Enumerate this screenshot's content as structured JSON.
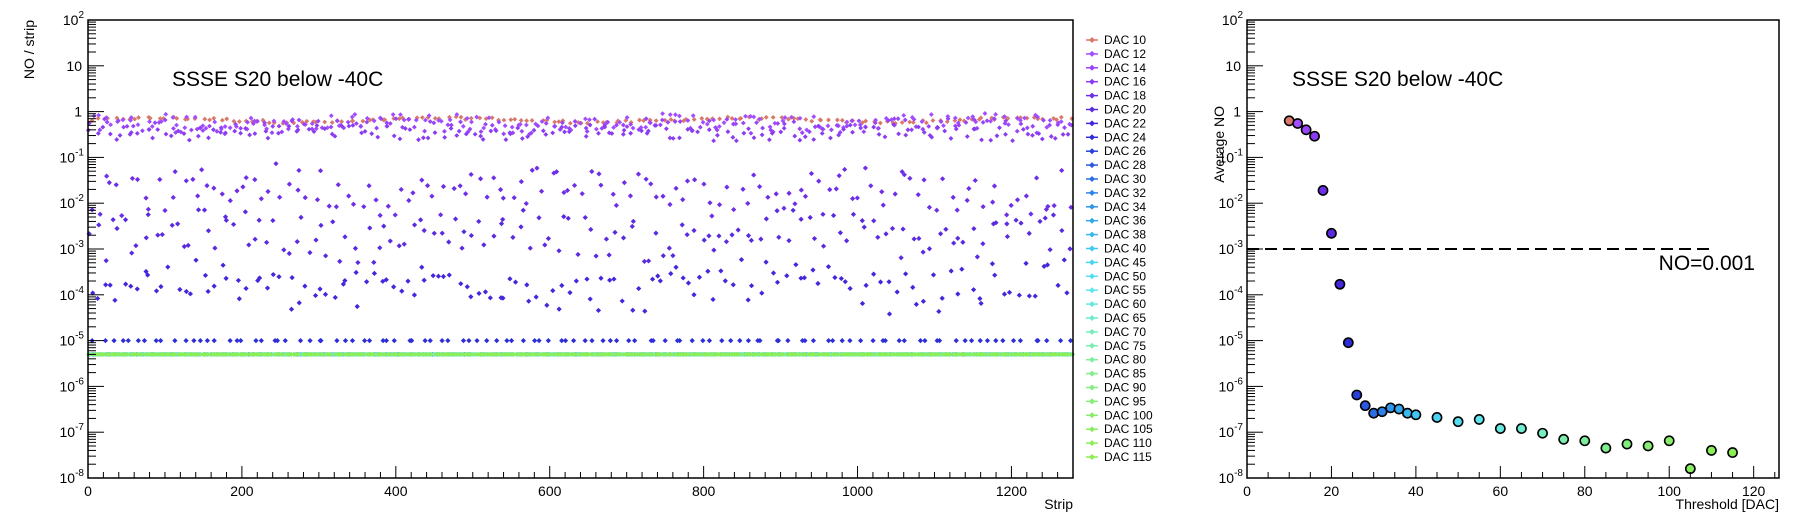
{
  "chart_data": [
    {
      "type": "scatter",
      "annotation": "SSSE S20 below -40C",
      "xlabel": "Strip",
      "ylabel": "NO / strip",
      "xlim": [
        0,
        1280
      ],
      "ylim": [
        1e-08,
        100
      ],
      "y_scale": "log",
      "x_ticks": [
        0,
        200,
        400,
        600,
        800,
        1000,
        1200
      ],
      "y_ticks": [
        "10^-8",
        "10^-7",
        "10^-6",
        "10^-5",
        "10^-4",
        "10^-3",
        "10^-2",
        "10^-1",
        "1",
        "10",
        "10^2"
      ],
      "legend_position": "right",
      "series": [
        {
          "name": "DAC 10",
          "color": "#d9796a",
          "level": 0.65
        },
        {
          "name": "DAC 12",
          "color": "#a24dff",
          "level": 0.6
        },
        {
          "name": "DAC 14",
          "color": "#9a44f8",
          "level": 0.5
        },
        {
          "name": "DAC 16",
          "color": "#8c3cf0",
          "level": 0.35
        },
        {
          "name": "DAC 18",
          "color": "#6e2ee8",
          "level": 0.02
        },
        {
          "name": "DAC 20",
          "color": "#5a2ae0",
          "level": 0.002
        },
        {
          "name": "DAC 22",
          "color": "#4426dc",
          "level": 0.00015
        },
        {
          "name": "DAC 24",
          "color": "#2e2ed8",
          "level": 1e-05
        },
        {
          "name": "DAC 26",
          "color": "#2a40dc",
          "level": 5e-06
        },
        {
          "name": "DAC 28",
          "color": "#2a58e0",
          "level": 5e-06
        },
        {
          "name": "DAC 30",
          "color": "#2a6ee4",
          "level": 5e-06
        },
        {
          "name": "DAC 32",
          "color": "#2c82e8",
          "level": 5e-06
        },
        {
          "name": "DAC 34",
          "color": "#3096ec",
          "level": 5e-06
        },
        {
          "name": "DAC 36",
          "color": "#34a8ee",
          "level": 5e-06
        },
        {
          "name": "DAC 38",
          "color": "#38b8f0",
          "level": 5e-06
        },
        {
          "name": "DAC 40",
          "color": "#40c6f2",
          "level": 5e-06
        },
        {
          "name": "DAC 45",
          "color": "#4ad2f2",
          "level": 5e-06
        },
        {
          "name": "DAC 50",
          "color": "#54dcf0",
          "level": 5e-06
        },
        {
          "name": "DAC 55",
          "color": "#5ee4ec",
          "level": 5e-06
        },
        {
          "name": "DAC 60",
          "color": "#66e8e0",
          "level": 5e-06
        },
        {
          "name": "DAC 65",
          "color": "#6eecd0",
          "level": 5e-06
        },
        {
          "name": "DAC 70",
          "color": "#76eebe",
          "level": 5e-06
        },
        {
          "name": "DAC 75",
          "color": "#7aeeac",
          "level": 5e-06
        },
        {
          "name": "DAC 80",
          "color": "#7eee9c",
          "level": 5e-06
        },
        {
          "name": "DAC 85",
          "color": "#80ee8c",
          "level": 5e-06
        },
        {
          "name": "DAC 90",
          "color": "#82ee7e",
          "level": 5e-06
        },
        {
          "name": "DAC 95",
          "color": "#84ee72",
          "level": 5e-06
        },
        {
          "name": "DAC 100",
          "color": "#86ee68",
          "level": 5e-06
        },
        {
          "name": "DAC 105",
          "color": "#88ee60",
          "level": 5e-06
        },
        {
          "name": "DAC 110",
          "color": "#8aee58",
          "level": 5e-06
        },
        {
          "name": "DAC 115",
          "color": "#8cee52",
          "level": 5e-06
        }
      ]
    },
    {
      "type": "scatter",
      "annotation": "SSSE S20 below -40C",
      "xlabel": "Threshold [DAC]",
      "ylabel": "Average NO",
      "xlim": [
        0,
        126
      ],
      "ylim": [
        1e-08,
        100
      ],
      "y_scale": "log",
      "x_ticks": [
        0,
        20,
        40,
        60,
        80,
        100,
        120
      ],
      "y_ticks": [
        "10^-8",
        "10^-7",
        "10^-6",
        "10^-5",
        "10^-4",
        "10^-3",
        "10^-2",
        "10^-1",
        "1",
        "10",
        "10^2"
      ],
      "reference_line": {
        "y": 0.001,
        "label": "NO=0.001",
        "style": "dashed",
        "x_range": [
          0,
          110
        ]
      },
      "points": [
        {
          "x": 10,
          "y": 0.63,
          "color": "#d9796a"
        },
        {
          "x": 12,
          "y": 0.55,
          "color": "#a24dff"
        },
        {
          "x": 14,
          "y": 0.4,
          "color": "#9a44f8"
        },
        {
          "x": 16,
          "y": 0.29,
          "color": "#8c3cf0"
        },
        {
          "x": 18,
          "y": 0.019,
          "color": "#6e2ee8"
        },
        {
          "x": 20,
          "y": 0.0022,
          "color": "#5a2ae0"
        },
        {
          "x": 22,
          "y": 0.00017,
          "color": "#4426dc"
        },
        {
          "x": 24,
          "y": 9e-06,
          "color": "#2e2ed8"
        },
        {
          "x": 26,
          "y": 6.5e-07,
          "color": "#2a40dc"
        },
        {
          "x": 28,
          "y": 3.8e-07,
          "color": "#2a58e0"
        },
        {
          "x": 30,
          "y": 2.6e-07,
          "color": "#2a6ee4"
        },
        {
          "x": 32,
          "y": 2.8e-07,
          "color": "#2c82e8"
        },
        {
          "x": 34,
          "y": 3.4e-07,
          "color": "#3096ec"
        },
        {
          "x": 36,
          "y": 3.2e-07,
          "color": "#34a8ee"
        },
        {
          "x": 38,
          "y": 2.6e-07,
          "color": "#38b8f0"
        },
        {
          "x": 40,
          "y": 2.4e-07,
          "color": "#40c6f2"
        },
        {
          "x": 45,
          "y": 2.1e-07,
          "color": "#4ad2f2"
        },
        {
          "x": 50,
          "y": 1.7e-07,
          "color": "#54dcf0"
        },
        {
          "x": 55,
          "y": 1.9e-07,
          "color": "#5ee4ec"
        },
        {
          "x": 60,
          "y": 1.2e-07,
          "color": "#66e8e0"
        },
        {
          "x": 65,
          "y": 1.2e-07,
          "color": "#6eecd0"
        },
        {
          "x": 70,
          "y": 9.5e-08,
          "color": "#76eebe"
        },
        {
          "x": 75,
          "y": 7e-08,
          "color": "#7aeeac"
        },
        {
          "x": 80,
          "y": 6.5e-08,
          "color": "#7eee9c"
        },
        {
          "x": 85,
          "y": 4.5e-08,
          "color": "#80ee8c"
        },
        {
          "x": 90,
          "y": 5.5e-08,
          "color": "#82ee7e"
        },
        {
          "x": 95,
          "y": 5e-08,
          "color": "#84ee72"
        },
        {
          "x": 100,
          "y": 6.5e-08,
          "color": "#86ee68"
        },
        {
          "x": 105,
          "y": 1.6e-08,
          "color": "#88ee60"
        },
        {
          "x": 110,
          "y": 4e-08,
          "color": "#8aee58"
        },
        {
          "x": 115,
          "y": 3.6e-08,
          "color": "#8cee52"
        }
      ]
    }
  ]
}
